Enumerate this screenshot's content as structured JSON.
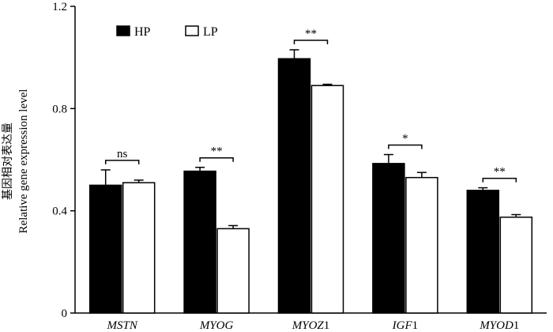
{
  "chart_data": {
    "type": "bar",
    "title": "",
    "xlabel": "",
    "ylabel_zh": "基因相对表达量",
    "ylabel": "Relative gene expression level",
    "ylim": [
      0,
      1.2
    ],
    "yticks": [
      "0",
      "0.4",
      "0.8",
      "1.2"
    ],
    "categories": [
      {
        "prefix": "MSTN",
        "suffix": ""
      },
      {
        "prefix": "MYOG",
        "suffix": ""
      },
      {
        "prefix": "MYOZ",
        "suffix": "1"
      },
      {
        "prefix": "IGF",
        "suffix": "1"
      },
      {
        "prefix": "MYOD",
        "suffix": "1"
      }
    ],
    "series": [
      {
        "name": "HP",
        "color": "#000000",
        "values": [
          0.5,
          0.555,
          0.995,
          0.585,
          0.48
        ],
        "errors": [
          0.06,
          0.015,
          0.035,
          0.035,
          0.01
        ]
      },
      {
        "name": "LP",
        "color": "#ffffff",
        "values": [
          0.51,
          0.33,
          0.89,
          0.53,
          0.375
        ],
        "errors": [
          0.01,
          0.012,
          0.005,
          0.02,
          0.01
        ]
      }
    ],
    "significance": [
      "ns",
      "**",
      "**",
      "*",
      "**"
    ],
    "legend_position": "top-left",
    "grid": false
  }
}
